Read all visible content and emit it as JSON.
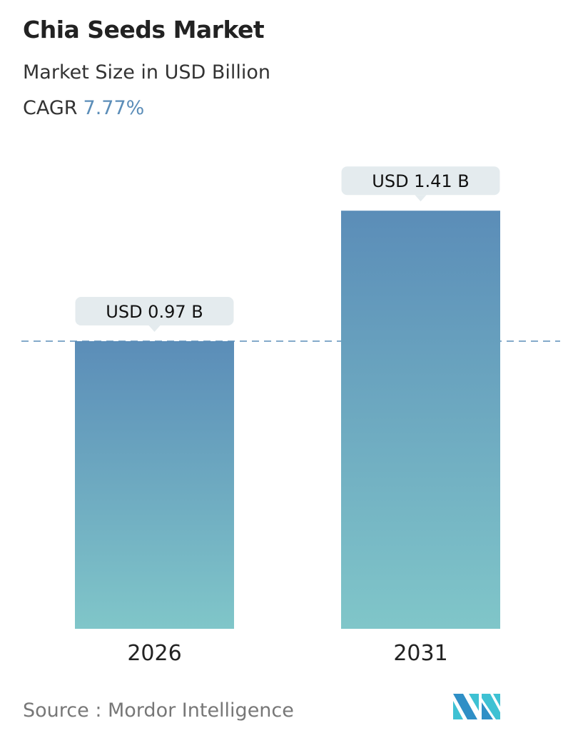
{
  "header": {
    "title": "Chia Seeds Market",
    "subtitle": "Market Size in USD Billion",
    "cagr_label": "CAGR",
    "cagr_value": "7.77%"
  },
  "chart_data": {
    "type": "bar",
    "categories": [
      "2026",
      "2031"
    ],
    "values": [
      0.97,
      1.41
    ],
    "data_labels": [
      "USD 0.97 B",
      "USD 1.41 B"
    ],
    "ylabel": "Market Size in USD Billion",
    "reference_line": "dashed line at 2026 value",
    "grid": false,
    "colors": {
      "bar_top": "#5b8db8",
      "bar_bottom": "#80c6c9",
      "label_bg": "#e4ebee",
      "cagr": "#5b8db8"
    }
  },
  "footer": {
    "source": "Source :  Mordor Intelligence",
    "logo_text": "MI"
  }
}
